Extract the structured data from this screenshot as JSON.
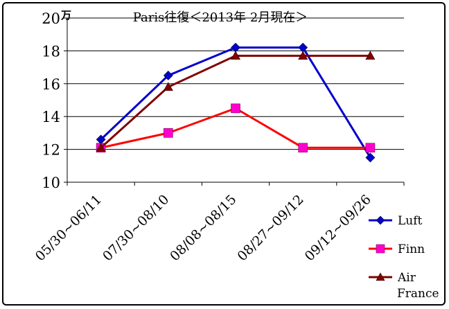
{
  "chart_data": {
    "type": "line",
    "title": "Paris往復＜2013年 2月現在＞",
    "unit_label": "万",
    "categories": [
      "05/30~06/11",
      "07/30~08/10",
      "08/08~08/15",
      "08/27~09/12",
      "09/12~09/26"
    ],
    "ylim": [
      10,
      20
    ],
    "yticks": [
      10,
      12,
      14,
      16,
      18,
      20
    ],
    "grid": true,
    "legend_position": "right",
    "series": [
      {
        "name": "Luft",
        "color": "#0000CC",
        "marker": "diamond",
        "values": [
          12.6,
          16.5,
          18.2,
          18.2,
          11.5
        ]
      },
      {
        "name": "Finn",
        "color": "#FF00CC",
        "line_color": "#FF0000",
        "marker": "square",
        "values": [
          12.1,
          13.0,
          14.5,
          12.1,
          12.1
        ]
      },
      {
        "name": "Air France",
        "color": "#800000",
        "marker": "triangle",
        "values": [
          12.1,
          15.8,
          17.7,
          17.7,
          17.7
        ]
      }
    ]
  }
}
